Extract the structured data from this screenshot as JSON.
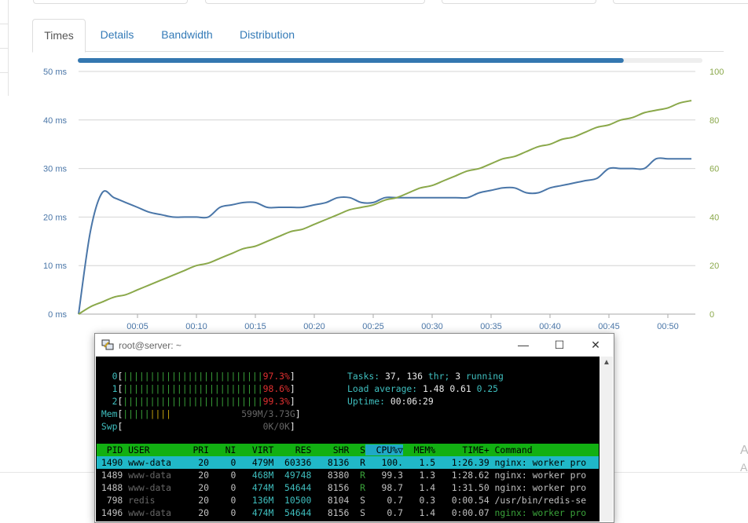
{
  "tabs": [
    {
      "label": "Times",
      "active": true
    },
    {
      "label": "Details",
      "active": false
    },
    {
      "label": "Bandwidth",
      "active": false
    },
    {
      "label": "Distribution",
      "active": false
    }
  ],
  "progress_fraction": 0.874,
  "chart_data": {
    "type": "line",
    "x_unit": "minutes:seconds",
    "xlim": [
      0,
      52
    ],
    "x_ticks": [
      "00:05",
      "00:10",
      "00:15",
      "00:20",
      "00:25",
      "00:30",
      "00:35",
      "00:40",
      "00:45",
      "00:50"
    ],
    "y_left": {
      "ylim": [
        0,
        50
      ],
      "ticks": [
        "0 ms",
        "10 ms",
        "20 ms",
        "30 ms",
        "40 ms",
        "50 ms"
      ]
    },
    "y_right": {
      "ylim": [
        0,
        100
      ],
      "ticks": [
        "0",
        "20",
        "40",
        "60",
        "80",
        "100"
      ]
    },
    "grid": true,
    "series": [
      {
        "axis": "left",
        "color": "#4a76a8",
        "x": [
          0,
          1,
          2,
          3,
          4,
          5,
          6,
          7,
          8,
          9,
          10,
          11,
          12,
          13,
          14,
          15,
          16,
          17,
          18,
          19,
          20,
          21,
          22,
          23,
          24,
          25,
          26,
          27,
          28,
          29,
          30,
          31,
          32,
          33,
          34,
          35,
          36,
          37,
          38,
          39,
          40,
          41,
          42,
          43,
          44,
          45,
          46,
          47,
          48,
          49,
          50,
          51,
          52
        ],
        "y": [
          0,
          17,
          25,
          24,
          23,
          22,
          21,
          20.5,
          20,
          20,
          20,
          20,
          22,
          22.5,
          23,
          23,
          22,
          22,
          22,
          22,
          22.5,
          23,
          24,
          24,
          23,
          23,
          24,
          24,
          24,
          24,
          24,
          24,
          24,
          24,
          25,
          25.5,
          26,
          26,
          25,
          25,
          26,
          26.5,
          27,
          27.5,
          28,
          30,
          30,
          30,
          30,
          32,
          32,
          32,
          32
        ]
      },
      {
        "axis": "right",
        "color": "#8aa84a",
        "x": [
          0,
          1,
          2,
          3,
          4,
          5,
          6,
          7,
          8,
          9,
          10,
          11,
          12,
          13,
          14,
          15,
          16,
          17,
          18,
          19,
          20,
          21,
          22,
          23,
          24,
          25,
          26,
          27,
          28,
          29,
          30,
          31,
          32,
          33,
          34,
          35,
          36,
          37,
          38,
          39,
          40,
          41,
          42,
          43,
          44,
          45,
          46,
          47,
          48,
          49,
          50,
          51,
          52
        ],
        "y": [
          0,
          3,
          5,
          7,
          8,
          10,
          12,
          14,
          16,
          18,
          20,
          21,
          23,
          25,
          27,
          28,
          30,
          32,
          34,
          35,
          37,
          39,
          41,
          43,
          44,
          45,
          47,
          48,
          50,
          52,
          53,
          55,
          57,
          59,
          60,
          62,
          64,
          65,
          67,
          69,
          70,
          72,
          73,
          75,
          77,
          78,
          80,
          81,
          83,
          84,
          85,
          87,
          88
        ]
      }
    ]
  },
  "terminal": {
    "title": "root@server: ~",
    "icon": "putty-icon",
    "buttons": {
      "minimize": "—",
      "maximize": "☐",
      "close": "✕"
    },
    "cpu": [
      {
        "id": "0",
        "bar": "||||||||||||||||||||||||||",
        "pct": "97.3%"
      },
      {
        "id": "1",
        "bar": "||||||||||||||||||||||||||",
        "pct": "98.6%"
      },
      {
        "id": "2",
        "bar": "||||||||||||||||||||||||||",
        "pct": "99.3%"
      }
    ],
    "mem": {
      "label": "Mem",
      "bar_green": "|||||",
      "bar_yellow": "||||",
      "value": "599M/3.73G"
    },
    "swp": {
      "label": "Swp",
      "value": "0K/0K"
    },
    "tasks": {
      "label": "Tasks:",
      "count": "37,",
      "thr": "136",
      "thr_label": "thr;",
      "running": "3",
      "running_label": "running"
    },
    "load": {
      "label": "Load average:",
      "v1": "1.48",
      "v2": "0.61",
      "v3": "0.25"
    },
    "uptime": {
      "label": "Uptime:",
      "value": "00:06:29"
    },
    "columns": [
      "PID",
      "USER",
      "PRI",
      "NI",
      "VIRT",
      "RES",
      "SHR",
      "S",
      "CPU%▽",
      "MEM%",
      "TIME+",
      "Command"
    ],
    "processes": [
      {
        "pid": "1490",
        "user": "www-data",
        "pri": "20",
        "ni": "0",
        "virt": "479M",
        "res": "60336",
        "shr": "8136",
        "s": "R",
        "cpu": "100.",
        "mem": "1.5",
        "time": "1:26.39",
        "cmd": "nginx: worker pro"
      },
      {
        "pid": "1489",
        "user": "www-data",
        "pri": "20",
        "ni": "0",
        "virt": "468M",
        "res": "49748",
        "shr": "8380",
        "s": "R",
        "cpu": "99.3",
        "mem": "1.3",
        "time": "1:28.62",
        "cmd": "nginx: worker pro"
      },
      {
        "pid": "1488",
        "user": "www-data",
        "pri": "20",
        "ni": "0",
        "virt": "474M",
        "res": "54644",
        "shr": "8156",
        "s": "R",
        "cpu": "98.7",
        "mem": "1.4",
        "time": "1:31.50",
        "cmd": "nginx: worker pro"
      },
      {
        "pid": "798",
        "user": "redis",
        "pri": "20",
        "ni": "0",
        "virt": "136M",
        "res": "10500",
        "shr": "8104",
        "s": "S",
        "cpu": "0.7",
        "mem": "0.3",
        "time": "0:00.54",
        "cmd": "/usr/bin/redis-se"
      },
      {
        "pid": "1496",
        "user": "www-data",
        "pri": "20",
        "ni": "0",
        "virt": "474M",
        "res": "54644",
        "shr": "8156",
        "s": "S",
        "cpu": "0.7",
        "mem": "1.4",
        "time": "0:00.07",
        "cmd": "nginx: worker pro"
      }
    ]
  },
  "side_letters": [
    "A",
    "A"
  ]
}
